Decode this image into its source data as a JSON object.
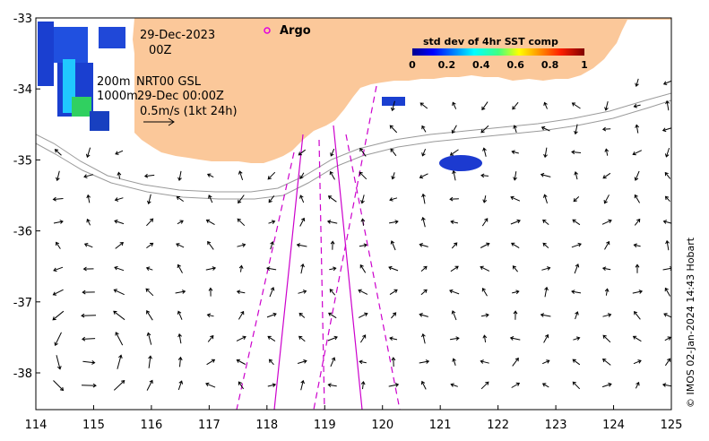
{
  "map": {
    "x_ticks": [
      "114",
      "115",
      "116",
      "117",
      "118",
      "119",
      "120",
      "121",
      "122",
      "123",
      "124",
      "125"
    ],
    "y_ticks": [
      "-33",
      "-34",
      "-35",
      "-36",
      "-37",
      "-38"
    ],
    "date_label": "29-Dec-2023",
    "time_label": "00Z",
    "depth_200": "200m",
    "depth_1000": "1000m",
    "product_label": "NRT00 GSL",
    "product_time": "29-Dec 00:00Z",
    "scale_label": "0.5m/s (1kt 24h)",
    "argo_label": "Argo",
    "colorbar": {
      "title": "std dev of 4hr SST comp",
      "ticks": [
        "0",
        "0.2",
        "0.4",
        "0.6",
        "0.8",
        "1"
      ]
    },
    "credit": "© IMOS 02-Jan-2024 14:43 Hobart",
    "colors": {
      "land": "#fbc89a",
      "argo": "#e000e0",
      "track": "#cc00cc",
      "isobath": "#999999"
    }
  }
}
